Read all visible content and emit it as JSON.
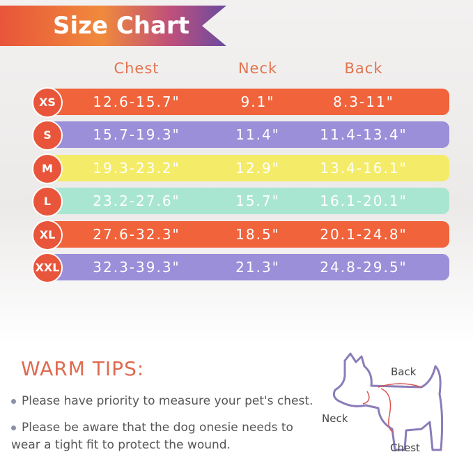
{
  "header": {
    "title": "Size Chart"
  },
  "table": {
    "columns": [
      "Chest",
      "Neck",
      "Back"
    ],
    "rows": [
      [
        "XS",
        "12.6-15.7\"",
        "9.1\"",
        "8.3-11\""
      ],
      [
        "S",
        "15.7-19.3\"",
        "11.4\"",
        "11.4-13.4\""
      ],
      [
        "M",
        "19.3-23.2\"",
        "12.9\"",
        "13.4-16.1\""
      ],
      [
        "L",
        "23.2-27.6\"",
        "15.7\"",
        "16.1-20.1\""
      ],
      [
        "XL",
        "27.6-32.3\"",
        "18.5\"",
        "20.1-24.8\""
      ],
      [
        "XXL",
        "32.3-39.3\"",
        "21.3\"",
        "24.8-29.5\""
      ]
    ],
    "row_colors": [
      "#f0633b",
      "#9c8fd9",
      "#f4ec69",
      "#a9e6d1",
      "#f0633b",
      "#9c8fd9"
    ]
  },
  "tips": {
    "title": "WARM TIPS:",
    "items": [
      "Please have priority to measure your pet's chest.",
      "Please be aware that the dog onesie needs to wear a tight fit to protect the wound."
    ]
  },
  "diagram": {
    "labels": [
      "Back",
      "Neck",
      "Chest"
    ]
  }
}
